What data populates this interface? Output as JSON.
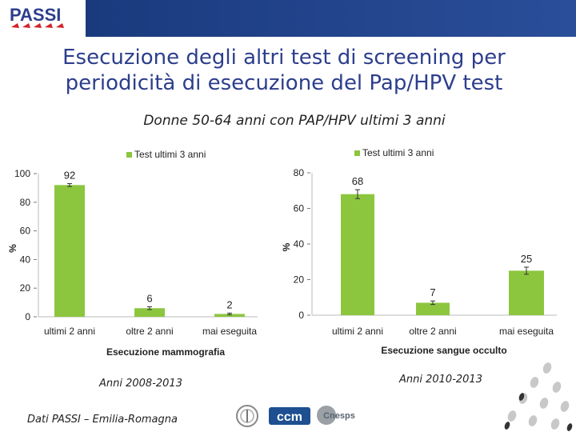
{
  "header": {
    "logo_text": "PASSI",
    "accent": "#2b4e9a"
  },
  "title_line1": "Esecuzione degli altri test di screening per",
  "title_line2": "periodicità di esecuzione del Pap/HPV test",
  "subtitle": "Donne 50-64 anni con PAP/HPV ultimi 3 anni",
  "chart_data": [
    {
      "type": "bar",
      "title": "",
      "legend": "Test ultimi 3 anni",
      "legend_position": "top",
      "categories": [
        "ultimi 2 anni",
        "oltre 2 anni",
        "mai eseguita"
      ],
      "values": [
        92,
        6,
        2
      ],
      "value_labels": [
        "92",
        "6",
        "2"
      ],
      "error": [
        1,
        1,
        0.6
      ],
      "xlabel": "Esecuzione mammografia",
      "ylabel": "%",
      "ylim": [
        0,
        100
      ],
      "yticks": [
        "0",
        "20",
        "40",
        "60",
        "80",
        "100"
      ],
      "color": "#8cc63f"
    },
    {
      "type": "bar",
      "title": "",
      "legend": "Test ultimi 3 anni",
      "legend_position": "top",
      "categories": [
        "ultimi 2 anni",
        "oltre 2 anni",
        "mai eseguita"
      ],
      "values": [
        68,
        7,
        25
      ],
      "value_labels": [
        "68",
        "7",
        "25"
      ],
      "error": [
        2.5,
        1,
        2
      ],
      "xlabel": "Esecuzione sangue occulto",
      "ylabel": "%",
      "ylim": [
        0,
        80
      ],
      "yticks": [
        "0",
        "20",
        "40",
        "60",
        "80"
      ],
      "color": "#8cc63f"
    }
  ],
  "captions": {
    "left": "Anni 2008-2013",
    "right": "Anni 2010-2013"
  },
  "footer": {
    "source": "Dati PASSI – Emilia-Romagna",
    "logo1": "ccm",
    "logo2": "Cnesps"
  }
}
